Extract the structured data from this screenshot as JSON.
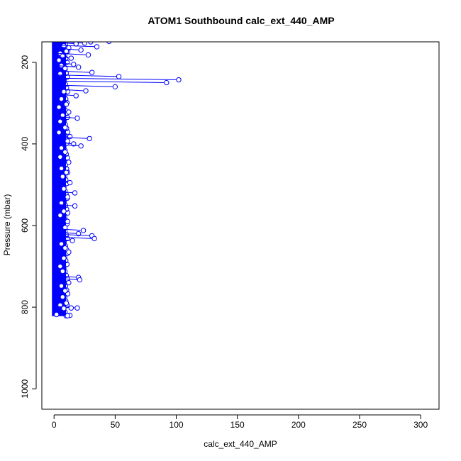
{
  "chart_data": {
    "type": "line",
    "title": "ATOM1 Southbound calc_ext_440_AMP",
    "xlabel": "calc_ext_440_AMP",
    "ylabel": "Pressure (mbar)",
    "xlim": [
      -10,
      315
    ],
    "ylim": [
      1050,
      150
    ],
    "y_reversed": true,
    "xticks": [
      0,
      50,
      100,
      150,
      200,
      250,
      300
    ],
    "yticks": [
      200,
      400,
      600,
      800,
      1000
    ],
    "grid": false,
    "marker": "open-circle",
    "series": [
      {
        "color": "#0000ff",
        "points": [
          [
            30,
            150
          ],
          [
            45,
            149
          ],
          [
            25,
            153
          ],
          [
            18,
            155
          ],
          [
            8,
            160
          ],
          [
            35,
            162
          ],
          [
            12,
            165
          ],
          [
            22,
            170
          ],
          [
            10,
            173
          ],
          [
            5,
            178
          ],
          [
            28,
            182
          ],
          [
            7,
            185
          ],
          [
            14,
            190
          ],
          [
            4,
            195
          ],
          [
            16,
            205
          ],
          [
            6,
            208
          ],
          [
            20,
            212
          ],
          [
            9,
            215
          ],
          [
            31,
            225
          ],
          [
            5,
            228
          ],
          [
            53,
            235
          ],
          [
            102,
            243
          ],
          [
            92,
            250
          ],
          [
            50,
            260
          ],
          [
            26,
            270
          ],
          [
            8,
            272
          ],
          [
            18,
            282
          ],
          [
            6,
            290
          ],
          [
            10,
            303
          ],
          [
            4,
            310
          ],
          [
            12,
            322
          ],
          [
            7,
            330
          ],
          [
            19,
            337
          ],
          [
            5,
            345
          ],
          [
            9,
            360
          ],
          [
            4,
            372
          ],
          [
            13,
            382
          ],
          [
            29,
            387
          ],
          [
            11,
            393
          ],
          [
            16,
            400
          ],
          [
            22,
            405
          ],
          [
            6,
            410
          ],
          [
            9,
            420
          ],
          [
            5,
            432
          ],
          [
            12,
            445
          ],
          [
            6,
            460
          ],
          [
            10,
            470
          ],
          [
            7,
            480
          ],
          [
            13,
            495
          ],
          [
            8,
            510
          ],
          [
            17,
            520
          ],
          [
            11,
            530
          ],
          [
            6,
            545
          ],
          [
            17,
            552
          ],
          [
            8,
            565
          ],
          [
            5,
            575
          ],
          [
            11,
            590
          ],
          [
            9,
            605
          ],
          [
            24,
            612
          ],
          [
            20,
            620
          ],
          [
            31,
            625
          ],
          [
            33,
            632
          ],
          [
            15,
            637
          ],
          [
            6,
            645
          ],
          [
            9,
            655
          ],
          [
            12,
            665
          ],
          [
            8,
            680
          ],
          [
            5,
            700
          ],
          [
            7,
            712
          ],
          [
            20,
            727
          ],
          [
            21,
            733
          ],
          [
            12,
            740
          ],
          [
            6,
            748
          ],
          [
            9,
            760
          ],
          [
            7,
            775
          ],
          [
            10,
            790
          ],
          [
            5,
            795
          ],
          [
            19,
            802
          ],
          [
            14,
            802
          ],
          [
            8,
            803
          ],
          [
            13,
            820
          ],
          [
            11,
            821
          ],
          [
            2,
            818
          ]
        ]
      }
    ],
    "column_band": {
      "color": "#0000ff",
      "x_range": [
        0,
        8
      ],
      "y_range": [
        150,
        822
      ]
    }
  }
}
